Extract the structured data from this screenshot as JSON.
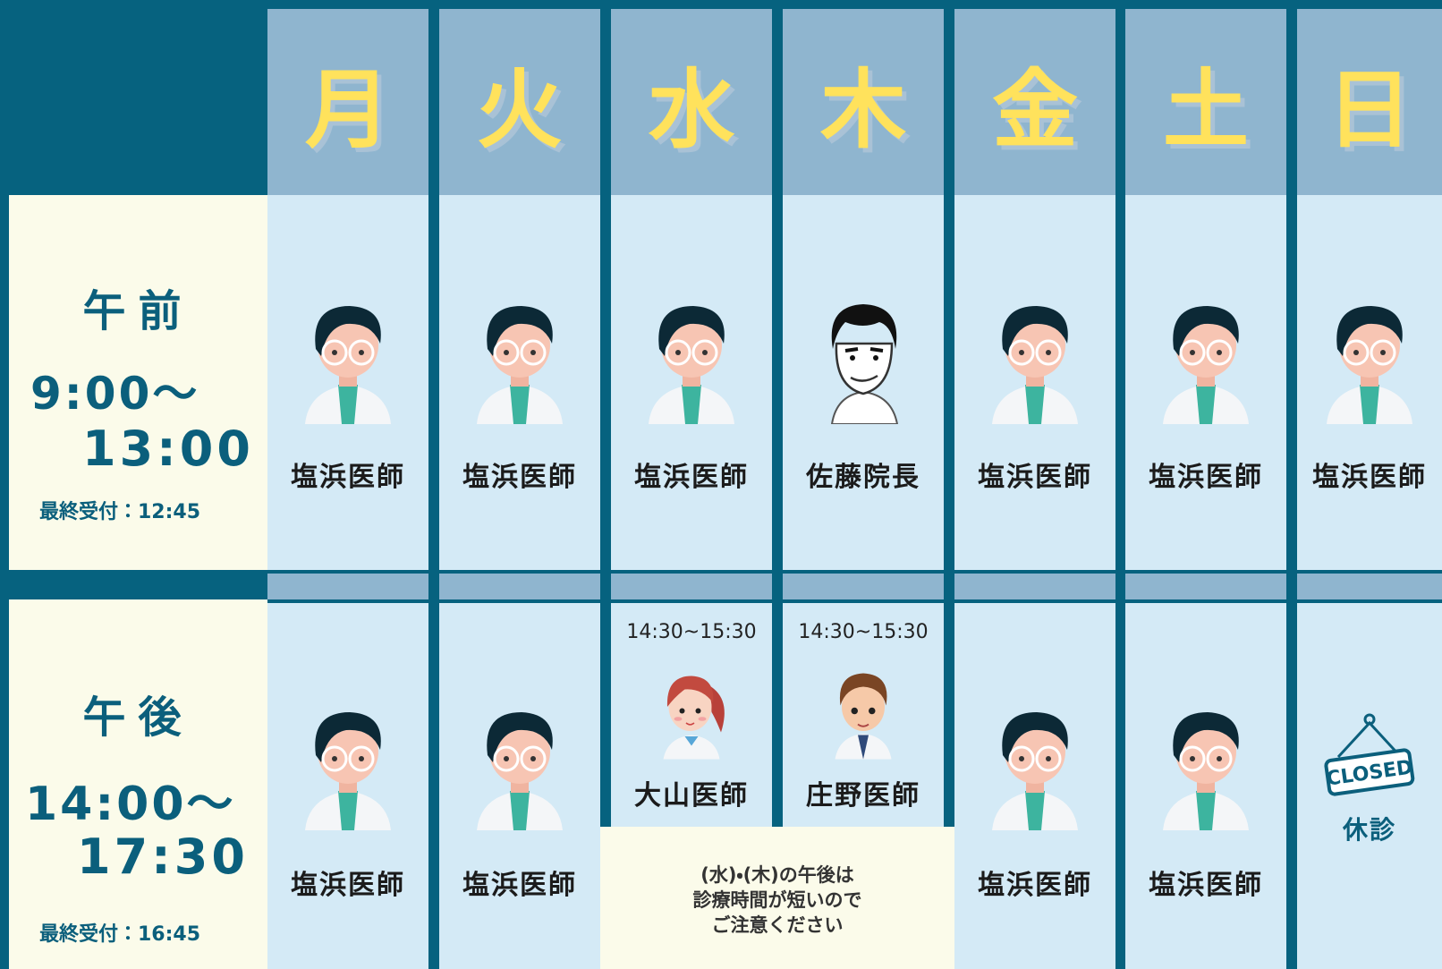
{
  "header": {
    "days": [
      "月",
      "火",
      "水",
      "木",
      "金",
      "土",
      "日"
    ]
  },
  "morning": {
    "label": "午前",
    "time_start": "9:00〜",
    "time_end": "13:00",
    "last_reception": "最終受付：12:45",
    "doctors": [
      "塩浜医師",
      "塩浜医師",
      "塩浜医師",
      "佐藤院長",
      "塩浜医師",
      "塩浜医師",
      "塩浜医師"
    ]
  },
  "afternoon": {
    "label": "午後",
    "time_start": "14:00〜",
    "time_end": "17:30",
    "last_reception": "最終受付：16:45",
    "cells": [
      {
        "doctor": "塩浜医師"
      },
      {
        "doctor": "塩浜医師"
      },
      {
        "time": "14:30~15:30",
        "doctor": "大山医師"
      },
      {
        "time": "14:30~15:30",
        "doctor": "庄野医師"
      },
      {
        "doctor": "塩浜医師"
      },
      {
        "doctor": "塩浜医師"
      },
      {
        "sign": "CLOSED",
        "status": "休診"
      }
    ],
    "note": [
      "(水)・(木)の午後は",
      "診療時間が短いので",
      "ご注意ください"
    ]
  }
}
